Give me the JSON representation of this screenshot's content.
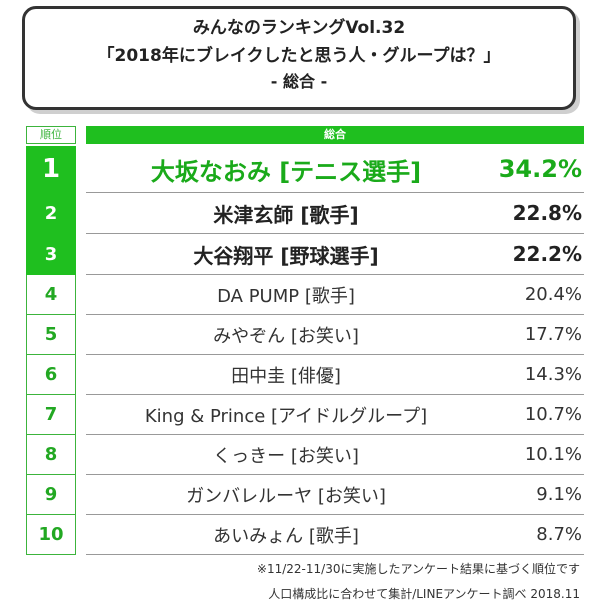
{
  "title": {
    "line1": "みんなのランキングVol.32",
    "line2": "「2018年にブレイクしたと思う人・グループは？」",
    "line3": "- 総合 -"
  },
  "table": {
    "header_rank": "順位",
    "header_main": "総合",
    "rows": [
      {
        "rank": "1",
        "name": "大坂なおみ [テニス選手]",
        "pct": "34.2%"
      },
      {
        "rank": "2",
        "name": "米津玄師 [歌手]",
        "pct": "22.8%"
      },
      {
        "rank": "3",
        "name": "大谷翔平 [野球選手]",
        "pct": "22.2%"
      },
      {
        "rank": "4",
        "name": "DA PUMP [歌手]",
        "pct": "20.4%"
      },
      {
        "rank": "5",
        "name": "みやぞん [お笑い]",
        "pct": "17.7%"
      },
      {
        "rank": "6",
        "name": "田中圭 [俳優]",
        "pct": "14.3%"
      },
      {
        "rank": "7",
        "name": "King & Prince [アイドルグループ]",
        "pct": "10.7%"
      },
      {
        "rank": "8",
        "name": "くっきー [お笑い]",
        "pct": "10.1%"
      },
      {
        "rank": "9",
        "name": "ガンバレルーヤ [お笑い]",
        "pct": "9.1%"
      },
      {
        "rank": "10",
        "name": "あいみょん [歌手]",
        "pct": "8.7%"
      }
    ]
  },
  "footnotes": {
    "note1": "※11/22-11/30に実施したアンケート結果に基づく順位です",
    "note2": "人口構成比に合わせて集計/LINEアンケート調べ 2018.11"
  },
  "colors": {
    "accent_green": "#1fbf1f",
    "dark_green_text": "#1aaa1a",
    "border_green": "#3cb43c"
  }
}
